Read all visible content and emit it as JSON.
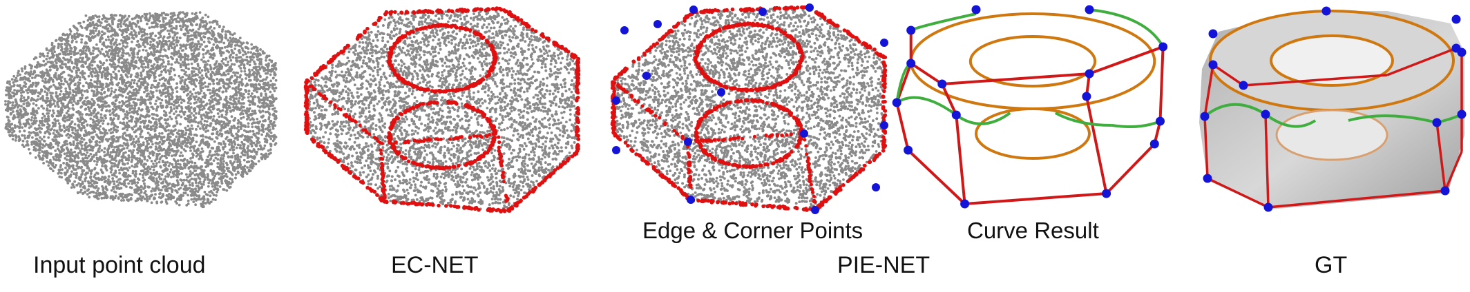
{
  "figure": {
    "panels": [
      {
        "id": "input",
        "caption": "Input point cloud"
      },
      {
        "id": "ecnet",
        "caption": "EC-NET"
      },
      {
        "id": "pienet",
        "caption": "PIE-NET",
        "subpanels": [
          {
            "id": "edge-corner",
            "caption": "Edge & Corner Points"
          },
          {
            "id": "curve",
            "caption": "Curve Result"
          }
        ]
      },
      {
        "id": "gt",
        "caption": "GT"
      }
    ],
    "colors": {
      "points": "#8a8a8a",
      "edge_points": "#e01010",
      "corner_points": "#1414d8",
      "line_curve": "#d01818",
      "circle_curve": "#d07810",
      "bspline_curve": "#3fae3f",
      "surface": "#cfcfcf"
    }
  }
}
